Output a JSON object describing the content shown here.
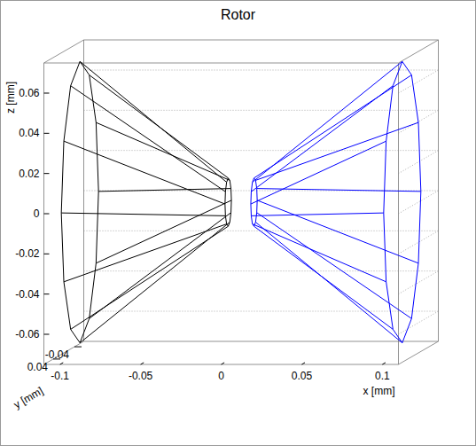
{
  "chart_data": {
    "type": "line3d",
    "title": "Rotor",
    "x_label": "x [mm]",
    "y_label": "y [mm]",
    "z_label": "z [mm]",
    "xlim": [
      -0.11,
      0.11
    ],
    "ylim": [
      -0.075,
      0.075
    ],
    "zlim": [
      -0.075,
      0.075
    ],
    "xticks": [
      -0.1,
      -0.05,
      0,
      0.05,
      0.1
    ],
    "yticks": [
      -0.04,
      0.04
    ],
    "zticks": [
      -0.06,
      -0.04,
      -0.02,
      0,
      0.02,
      0.04,
      0.06
    ],
    "grid": true,
    "series": [
      {
        "color": "#000000",
        "x": [
          -0.1,
          -0.1,
          -0.1,
          -0.1,
          -0.1,
          -0.1,
          -0.1,
          -0.1,
          -0.1,
          -0.1,
          -0.1,
          -0.1,
          -0.1,
          null,
          -0.008,
          -0.008,
          -0.008,
          -0.008,
          -0.008,
          -0.008,
          -0.008,
          -0.008,
          -0.008,
          -0.008,
          -0.008,
          -0.008,
          -0.008,
          null,
          -0.008,
          -0.1,
          null,
          -0.008,
          -0.1,
          null,
          -0.008,
          -0.1,
          null,
          -0.008,
          -0.1,
          null,
          -0.008,
          -0.1,
          null,
          -0.008,
          -0.1,
          null,
          -0.008,
          -0.1,
          null,
          -0.008,
          -0.1,
          null,
          -0.008,
          -0.1,
          null,
          -0.008,
          -0.1,
          null,
          -0.008,
          -0.1,
          null,
          -0.008,
          -0.1
        ],
        "y": [
          0.07,
          0.0606,
          0.035,
          0,
          -0.035,
          -0.0606,
          -0.07,
          -0.0606,
          -0.035,
          0,
          0.035,
          0.0606,
          0.07,
          null,
          0.012,
          0.0104,
          0.006,
          0,
          -0.006,
          -0.0104,
          -0.012,
          -0.0104,
          -0.006,
          0,
          0.006,
          0.0104,
          0.012,
          null,
          0.012,
          0.0606,
          null,
          0.0104,
          0.035,
          null,
          0.006,
          0,
          null,
          0,
          -0.035,
          null,
          -0.006,
          -0.0606,
          null,
          -0.0104,
          -0.07,
          null,
          -0.012,
          -0.0606,
          null,
          -0.0104,
          -0.035,
          null,
          -0.006,
          0,
          null,
          0,
          0.035,
          null,
          0.006,
          0.0606,
          null,
          0.0104,
          0.07
        ],
        "z": [
          0,
          0.035,
          0.0606,
          0.07,
          0.0606,
          0.035,
          0,
          -0.035,
          -0.0606,
          -0.07,
          -0.0606,
          -0.035,
          0,
          null,
          0,
          0.006,
          0.0104,
          0.012,
          0.0104,
          0.006,
          0,
          -0.006,
          -0.0104,
          -0.012,
          -0.0104,
          -0.006,
          0,
          null,
          0,
          0.035,
          null,
          0.006,
          0.0606,
          null,
          0.0104,
          0.07,
          null,
          0.012,
          0.0606,
          null,
          0.0104,
          0.035,
          null,
          0.006,
          0,
          null,
          0,
          -0.035,
          null,
          -0.006,
          -0.0606,
          null,
          -0.0104,
          -0.07,
          null,
          -0.012,
          -0.0606,
          null,
          -0.0104,
          -0.035,
          null,
          -0.006,
          0
        ]
      },
      {
        "color": "#0000ff",
        "x": [
          0.1,
          0.1,
          0.1,
          0.1,
          0.1,
          0.1,
          0.1,
          0.1,
          0.1,
          0.1,
          0.1,
          0.1,
          0.1,
          null,
          0.008,
          0.008,
          0.008,
          0.008,
          0.008,
          0.008,
          0.008,
          0.008,
          0.008,
          0.008,
          0.008,
          0.008,
          0.008,
          null,
          0.008,
          0.1,
          null,
          0.008,
          0.1,
          null,
          0.008,
          0.1,
          null,
          0.008,
          0.1,
          null,
          0.008,
          0.1,
          null,
          0.008,
          0.1,
          null,
          0.008,
          0.1,
          null,
          0.008,
          0.1,
          null,
          0.008,
          0.1,
          null,
          0.008,
          0.1,
          null,
          0.008,
          0.1,
          null,
          0.008,
          0.1
        ],
        "y": [
          0.07,
          0.0606,
          0.035,
          0,
          -0.035,
          -0.0606,
          -0.07,
          -0.0606,
          -0.035,
          0,
          0.035,
          0.0606,
          0.07,
          null,
          0.012,
          0.0104,
          0.006,
          0,
          -0.006,
          -0.0104,
          -0.012,
          -0.0104,
          -0.006,
          0,
          0.006,
          0.0104,
          0.012,
          null,
          0.012,
          0.0606,
          null,
          0.0104,
          0.035,
          null,
          0.006,
          0,
          null,
          0,
          -0.035,
          null,
          -0.006,
          -0.0606,
          null,
          -0.0104,
          -0.07,
          null,
          -0.012,
          -0.0606,
          null,
          -0.0104,
          -0.035,
          null,
          -0.006,
          0,
          null,
          0,
          0.035,
          null,
          0.006,
          0.0606,
          null,
          0.0104,
          0.07
        ],
        "z": [
          0,
          0.035,
          0.0606,
          0.07,
          0.0606,
          0.035,
          0,
          -0.035,
          -0.0606,
          -0.07,
          -0.0606,
          -0.035,
          0,
          null,
          0,
          0.006,
          0.0104,
          0.012,
          0.0104,
          0.006,
          0,
          -0.006,
          -0.0104,
          -0.012,
          -0.0104,
          -0.006,
          0,
          null,
          0,
          0.035,
          null,
          0.006,
          0.0606,
          null,
          0.0104,
          0.07,
          null,
          0.012,
          0.0606,
          null,
          0.0104,
          0.035,
          null,
          0.006,
          0,
          null,
          0,
          -0.035,
          null,
          -0.006,
          -0.0606,
          null,
          -0.0104,
          -0.07,
          null,
          -0.012,
          -0.0606,
          null,
          -0.0104,
          -0.035,
          null,
          -0.006,
          0
        ]
      }
    ]
  }
}
